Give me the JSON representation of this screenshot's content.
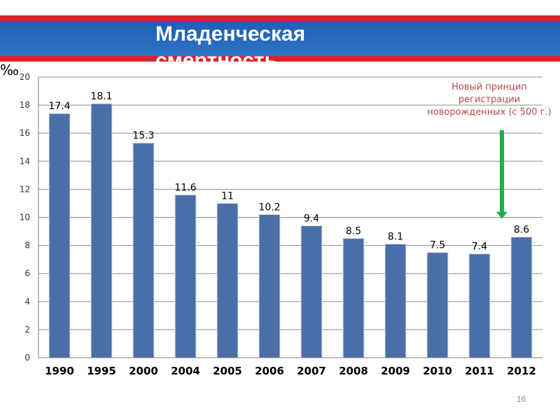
{
  "header": {
    "title": "Младенческая смертность"
  },
  "annotation": {
    "text": "Новый принцип\nрегистрации\nноворожденных (с 500 г.)"
  },
  "unit": "‰",
  "page_number": "16",
  "colors": {
    "bar": "#4a6fa8",
    "bar_edge": "#dfe6f1",
    "arrow": "#1db04a",
    "annotation": "#b5484b",
    "banner_blue": "#2d74c8",
    "banner_red": "#d8232a"
  },
  "chart_data": {
    "type": "bar",
    "title": "",
    "xlabel": "",
    "ylabel": "‰",
    "categories": [
      "1990",
      "1995",
      "2000",
      "2004",
      "2005",
      "2006",
      "2007",
      "2008",
      "2009",
      "2010",
      "2011",
      "2012"
    ],
    "values": [
      17.4,
      18.1,
      15.3,
      11.6,
      11,
      10.2,
      9.4,
      8.5,
      8.1,
      7.5,
      7.4,
      8.6
    ],
    "data_labels": [
      "17.4",
      "18.1",
      "15.3",
      "11.6",
      "11",
      "10.2",
      "9.4",
      "8.5",
      "8.1",
      "7.5",
      "7.4",
      "8.6"
    ],
    "yticks": [
      "0",
      "2",
      "4",
      "6",
      "8",
      "10",
      "12",
      "14",
      "16",
      "18",
      "20"
    ],
    "ylim": [
      0,
      20
    ],
    "grid": true,
    "legend": "none",
    "annotation_arrow_category": "2012"
  }
}
